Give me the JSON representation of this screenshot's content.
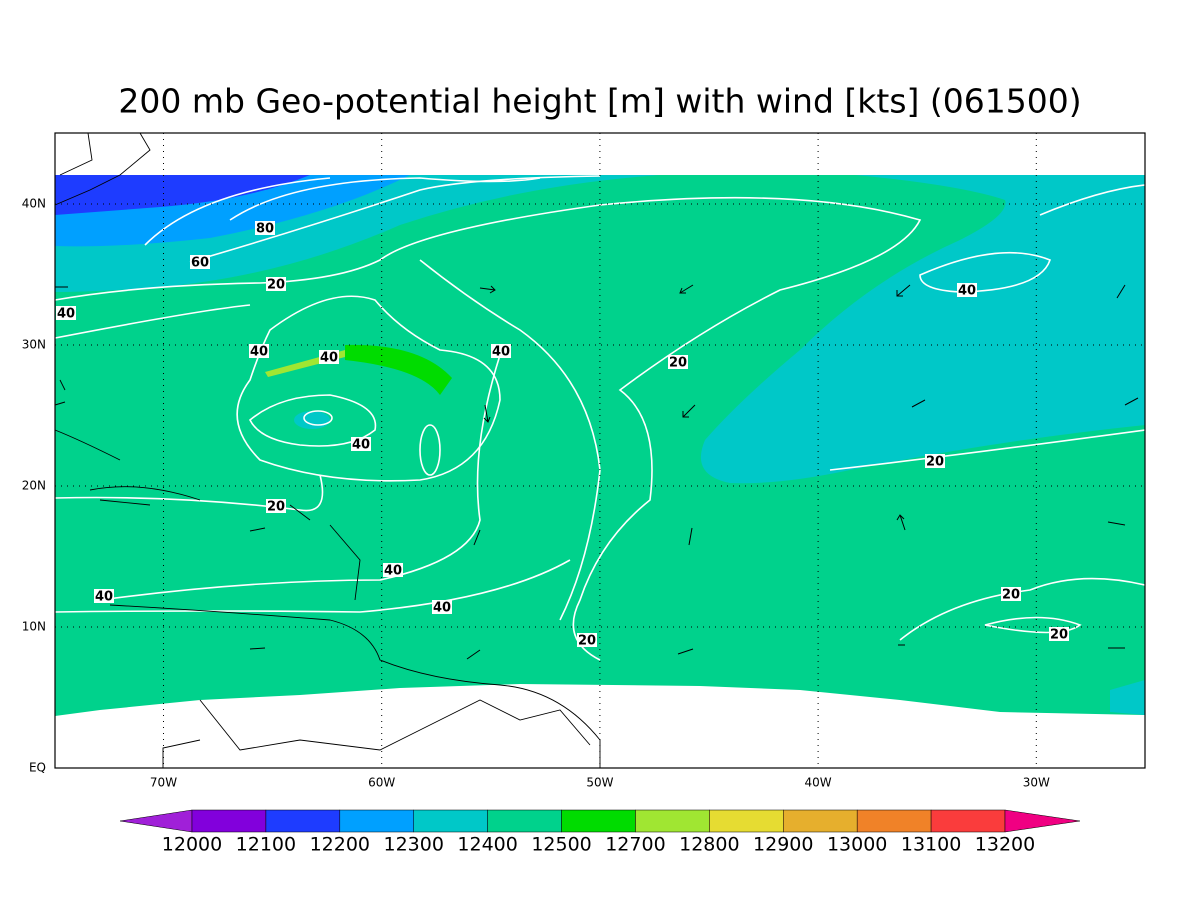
{
  "title": "200 mb Geo-potential height [m] with wind [kts] (061500)",
  "latitude_labels": [
    "EQ",
    "10N",
    "20N",
    "30N",
    "40N"
  ],
  "longitude_labels": [
    "70W",
    "60W",
    "50W",
    "40W",
    "30W"
  ],
  "contour_labels": [
    "80",
    "60",
    "20",
    "40",
    "40",
    "40",
    "40",
    "20",
    "40",
    "40",
    "20",
    "20",
    "40",
    "40",
    "40",
    "20",
    "20",
    "20"
  ],
  "colorbar": {
    "levels": [
      12000,
      12100,
      12200,
      12300,
      12400,
      12500,
      12700,
      12800,
      12900,
      13000,
      13100,
      13200
    ],
    "colors": [
      "#a020d8",
      "#8200dc",
      "#1e3cff",
      "#00a0ff",
      "#00c8c8",
      "#00d28c",
      "#00dc00",
      "#a0e632",
      "#e6dc32",
      "#e6af2d",
      "#f08228",
      "#fa3c3c",
      "#f00082"
    ]
  }
}
